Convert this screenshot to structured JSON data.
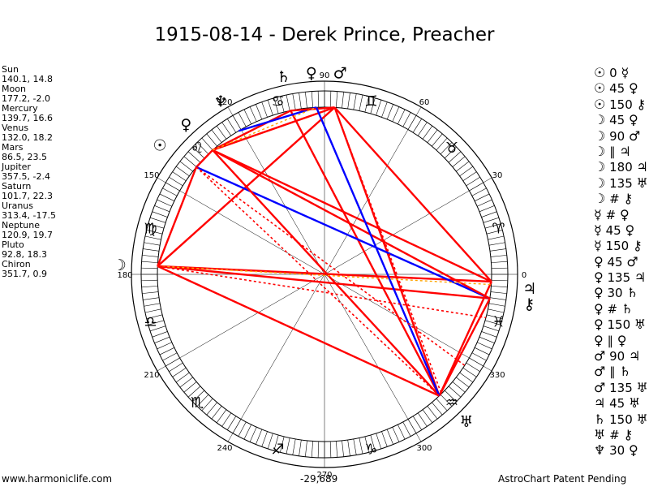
{
  "title": "1915-08-14 - Derek Prince, Preacher",
  "planets": [
    {
      "name": "Sun",
      "pos": "140.1, 14.8"
    },
    {
      "name": "Moon",
      "pos": "177.2, -2.0"
    },
    {
      "name": "Mercury",
      "pos": "139.7, 16.6"
    },
    {
      "name": "Venus",
      "pos": "132.0, 18.2"
    },
    {
      "name": "Mars",
      "pos": "86.5, 23.5"
    },
    {
      "name": "Jupiter",
      "pos": "357.5, -2.4"
    },
    {
      "name": "Saturn",
      "pos": "101.7, 22.3"
    },
    {
      "name": "Uranus",
      "pos": "313.4, -17.5"
    },
    {
      "name": "Neptune",
      "pos": "120.9, 19.7"
    },
    {
      "name": "Pluto",
      "pos": "92.8, 18.3"
    },
    {
      "name": "Chiron",
      "pos": "351.7, 0.9"
    }
  ],
  "aspects": [
    {
      "p1": "☉",
      "angle": "0",
      "p2": "☿"
    },
    {
      "p1": "☉",
      "angle": "45",
      "p2": "♀"
    },
    {
      "p1": "☉",
      "angle": "150",
      "p2": "⚷"
    },
    {
      "p1": "☽",
      "angle": "45",
      "p2": "♀"
    },
    {
      "p1": "☽",
      "angle": "90",
      "p2": "♂"
    },
    {
      "p1": "☽",
      "angle": "∥",
      "p2": "♃"
    },
    {
      "p1": "☽",
      "angle": "180",
      "p2": "♃"
    },
    {
      "p1": "☽",
      "angle": "135",
      "p2": "♅"
    },
    {
      "p1": "☽",
      "angle": "#",
      "p2": "⚷"
    },
    {
      "p1": "☿",
      "angle": "#",
      "p2": "♀"
    },
    {
      "p1": "☿",
      "angle": "45",
      "p2": "♀"
    },
    {
      "p1": "☿",
      "angle": "150",
      "p2": "⚷"
    },
    {
      "p1": "♀",
      "angle": "45",
      "p2": "♂"
    },
    {
      "p1": "♀",
      "angle": "135",
      "p2": "♃"
    },
    {
      "p1": "♀",
      "angle": "30",
      "p2": "♄"
    },
    {
      "p1": "♀",
      "angle": "#",
      "p2": "♄"
    },
    {
      "p1": "♀",
      "angle": "150",
      "p2": "♅"
    },
    {
      "p1": "♀",
      "angle": "∥",
      "p2": "♀"
    },
    {
      "p1": "♂",
      "angle": "90",
      "p2": "♃"
    },
    {
      "p1": "♂",
      "angle": "∥",
      "p2": "♄"
    },
    {
      "p1": "♂",
      "angle": "135",
      "p2": "♅"
    },
    {
      "p1": "♃",
      "angle": "45",
      "p2": "♅"
    },
    {
      "p1": "♄",
      "angle": "150",
      "p2": "♅"
    },
    {
      "p1": "♅",
      "angle": "#",
      "p2": "⚷"
    },
    {
      "p1": "♆",
      "angle": "30",
      "p2": "♀"
    }
  ],
  "wheel": {
    "degree_labels": [
      "0",
      "30",
      "60",
      "90",
      "120",
      "150",
      "180",
      "210",
      "240",
      "270",
      "300",
      "330"
    ],
    "sign_glyphs": [
      "♈",
      "♉",
      "♊",
      "♋",
      "♌",
      "♍",
      "♎",
      "♏",
      "♐",
      "♑",
      "♒",
      "♓"
    ],
    "planet_glyphs": [
      {
        "glyph": "☉",
        "longitude": 140.1
      },
      {
        "glyph": "☽",
        "longitude": 177.2
      },
      {
        "glyph": "♀",
        "longitude": 132.0
      },
      {
        "glyph": "♂",
        "longitude": 86.5
      },
      {
        "glyph": "♃",
        "longitude": 357.5
      },
      {
        "glyph": "♄",
        "longitude": 101.7
      },
      {
        "glyph": "♅",
        "longitude": 313.4
      },
      {
        "glyph": "♆",
        "longitude": 120.9
      },
      {
        "glyph": "♀",
        "longitude": 92.8
      },
      {
        "glyph": "⚷",
        "longitude": 351.7
      }
    ],
    "colors": {
      "red": "#ff0000",
      "blue": "#0000ff",
      "orange": "#ffa500",
      "ring": "#000000"
    }
  },
  "footer": {
    "left": "www.harmoniclife.com",
    "center": "-29,689",
    "right": "AstroChart Patent Pending"
  }
}
